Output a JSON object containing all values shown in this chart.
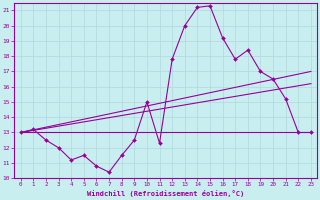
{
  "title": "",
  "xlabel": "Windchill (Refroidissement éolien,°C)",
  "bg_color": "#c8eef0",
  "grid_color": "#b0d8dc",
  "line_color": "#990099",
  "xlim": [
    -0.5,
    23.5
  ],
  "ylim": [
    10,
    21.5
  ],
  "xticks": [
    0,
    1,
    2,
    3,
    4,
    5,
    6,
    7,
    8,
    9,
    10,
    11,
    12,
    13,
    14,
    15,
    16,
    17,
    18,
    19,
    20,
    21,
    22,
    23
  ],
  "yticks": [
    10,
    11,
    12,
    13,
    14,
    15,
    16,
    17,
    18,
    19,
    20,
    21
  ],
  "line1": [
    13.0,
    13.2,
    12.5,
    12.0,
    11.2,
    11.5,
    10.8,
    10.4,
    11.5,
    12.5,
    15.0,
    12.3,
    17.8,
    20.0,
    21.2,
    21.3,
    19.2,
    17.8,
    18.4,
    17.0,
    16.5,
    15.2,
    13.0,
    13.0
  ],
  "line2": {
    "x": [
      0,
      23
    ],
    "y": [
      13.0,
      13.0
    ]
  },
  "line3": {
    "x": [
      0,
      23
    ],
    "y": [
      13.0,
      17.0
    ]
  },
  "line4": {
    "x": [
      0,
      23
    ],
    "y": [
      13.0,
      16.2
    ]
  }
}
